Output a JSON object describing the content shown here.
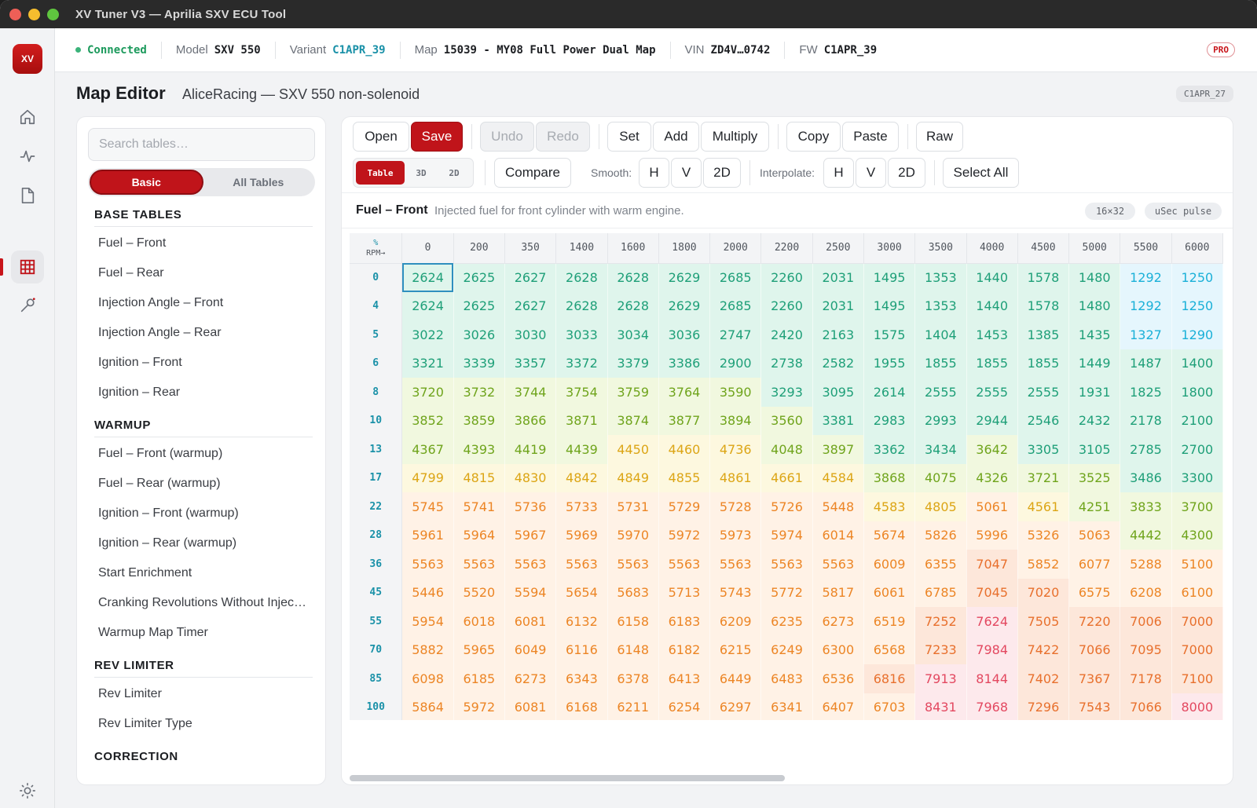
{
  "window": {
    "title": "XV Tuner V3 — Aprilia SXV ECU Tool",
    "traffic": [
      "#ed5f57",
      "#f5bd2e",
      "#5fc53f"
    ]
  },
  "rail": {
    "logo": "XV",
    "icons": [
      "home-icon",
      "activity-icon",
      "file-icon",
      "grid-icon",
      "wrench-icon",
      "sun-icon"
    ]
  },
  "status": {
    "connection": "Connected",
    "model_label": "Model",
    "model": "SXV 550",
    "variant_label": "Variant",
    "variant": "C1APR_39",
    "map_label": "Map",
    "map": "15039 - MY08 Full Power Dual Map",
    "vin_label": "VIN",
    "vin": "ZD4V…0742",
    "fw_label": "FW",
    "fw": "C1APR_39",
    "badge": "PRO"
  },
  "page": {
    "title": "Map Editor",
    "subtitle": "AliceRacing — SXV 550 non-solenoid",
    "version_badge": "C1APR_27"
  },
  "sidebar": {
    "search_placeholder": "Search tables…",
    "tabs": [
      "Basic",
      "All Tables"
    ],
    "sections": [
      {
        "title": "BASE TABLES",
        "items": [
          "Fuel – Front",
          "Fuel – Rear",
          "Injection Angle – Front",
          "Injection Angle – Rear",
          "Ignition – Front",
          "Ignition – Rear"
        ]
      },
      {
        "title": "WARMUP",
        "items": [
          "Fuel – Front (warmup)",
          "Fuel – Rear (warmup)",
          "Ignition – Front (warmup)",
          "Ignition – Rear (warmup)",
          "Start Enrichment",
          "Cranking Revolutions Without Injection",
          "Warmup Map Timer"
        ]
      },
      {
        "title": "REV LIMITER",
        "items": [
          "Rev Limiter",
          "Rev Limiter Type"
        ]
      },
      {
        "title": "CORRECTION",
        "items": []
      }
    ]
  },
  "toolbar": {
    "open": "Open",
    "save": "Save",
    "undo": "Undo",
    "redo": "Redo",
    "set": "Set",
    "add": "Add",
    "multiply": "Multiply",
    "copy": "Copy",
    "paste": "Paste",
    "raw": "Raw",
    "mode_table": "Table",
    "mode_3d": "3D",
    "mode_2d": "2D",
    "compare": "Compare",
    "smooth_label": "Smooth:",
    "smooth_h": "H",
    "smooth_v": "V",
    "smooth_2d": "2D",
    "interp_label": "Interpolate:",
    "interp_h": "H",
    "interp_v": "V",
    "interp_2d": "2D",
    "select_all": "Select All"
  },
  "table_info": {
    "name": "Fuel – Front",
    "description": "Injected fuel for front cylinder with warm engine.",
    "dims": "16×32",
    "unit": "uSec pulse"
  },
  "grid": {
    "corner_top": "%",
    "corner_bottom": "RPM→",
    "columns": [
      "0",
      "200",
      "350",
      "1400",
      "1600",
      "1800",
      "2000",
      "2200",
      "2500",
      "3000",
      "3500",
      "4000",
      "4500",
      "5000",
      "5500",
      "6000"
    ],
    "rows": [
      {
        "label": "0",
        "values": [
          2624,
          2625,
          2627,
          2628,
          2628,
          2629,
          2685,
          2260,
          2031,
          1495,
          1353,
          1440,
          1578,
          1480,
          1292,
          1250
        ]
      },
      {
        "label": "4",
        "values": [
          2624,
          2625,
          2627,
          2628,
          2628,
          2629,
          2685,
          2260,
          2031,
          1495,
          1353,
          1440,
          1578,
          1480,
          1292,
          1250
        ]
      },
      {
        "label": "5",
        "values": [
          3022,
          3026,
          3030,
          3033,
          3034,
          3036,
          2747,
          2420,
          2163,
          1575,
          1404,
          1453,
          1385,
          1435,
          1327,
          1290
        ]
      },
      {
        "label": "6",
        "values": [
          3321,
          3339,
          3357,
          3372,
          3379,
          3386,
          2900,
          2738,
          2582,
          1955,
          1855,
          1855,
          1855,
          1449,
          1487,
          1400
        ]
      },
      {
        "label": "8",
        "values": [
          3720,
          3732,
          3744,
          3754,
          3759,
          3764,
          3590,
          3293,
          3095,
          2614,
          2555,
          2555,
          2555,
          1931,
          1825,
          1800
        ]
      },
      {
        "label": "10",
        "values": [
          3852,
          3859,
          3866,
          3871,
          3874,
          3877,
          3894,
          3560,
          3381,
          2983,
          2993,
          2944,
          2546,
          2432,
          2178,
          2100
        ]
      },
      {
        "label": "13",
        "values": [
          4367,
          4393,
          4419,
          4439,
          4450,
          4460,
          4736,
          4048,
          3897,
          3362,
          3434,
          3642,
          3305,
          3105,
          2785,
          2700
        ]
      },
      {
        "label": "17",
        "values": [
          4799,
          4815,
          4830,
          4842,
          4849,
          4855,
          4861,
          4661,
          4584,
          3868,
          4075,
          4326,
          3721,
          3525,
          3486,
          3300
        ]
      },
      {
        "label": "22",
        "values": [
          5745,
          5741,
          5736,
          5733,
          5731,
          5729,
          5728,
          5726,
          5448,
          4583,
          4805,
          5061,
          4561,
          4251,
          3833,
          3700
        ]
      },
      {
        "label": "28",
        "values": [
          5961,
          5964,
          5967,
          5969,
          5970,
          5972,
          5973,
          5974,
          6014,
          5674,
          5826,
          5996,
          5326,
          5063,
          4442,
          4300
        ]
      },
      {
        "label": "36",
        "values": [
          5563,
          5563,
          5563,
          5563,
          5563,
          5563,
          5563,
          5563,
          5563,
          6009,
          6355,
          7047,
          5852,
          6077,
          5288,
          5100
        ]
      },
      {
        "label": "45",
        "values": [
          5446,
          5520,
          5594,
          5654,
          5683,
          5713,
          5743,
          5772,
          5817,
          6061,
          6785,
          7045,
          7020,
          6575,
          6208,
          6100
        ]
      },
      {
        "label": "55",
        "values": [
          5954,
          6018,
          6081,
          6132,
          6158,
          6183,
          6209,
          6235,
          6273,
          6519,
          7252,
          7624,
          7505,
          7220,
          7006,
          7000
        ]
      },
      {
        "label": "70",
        "values": [
          5882,
          5965,
          6049,
          6116,
          6148,
          6182,
          6215,
          6249,
          6300,
          6568,
          7233,
          7984,
          7422,
          7066,
          7095,
          7000
        ]
      },
      {
        "label": "85",
        "values": [
          6098,
          6185,
          6273,
          6343,
          6378,
          6413,
          6449,
          6483,
          6536,
          6816,
          7913,
          8144,
          7402,
          7367,
          7178,
          7100
        ]
      },
      {
        "label": "100",
        "values": [
          5864,
          5972,
          6081,
          6168,
          6211,
          6254,
          6297,
          6341,
          6407,
          6703,
          8431,
          7968,
          7296,
          7543,
          7066,
          8000
        ]
      }
    ]
  }
}
